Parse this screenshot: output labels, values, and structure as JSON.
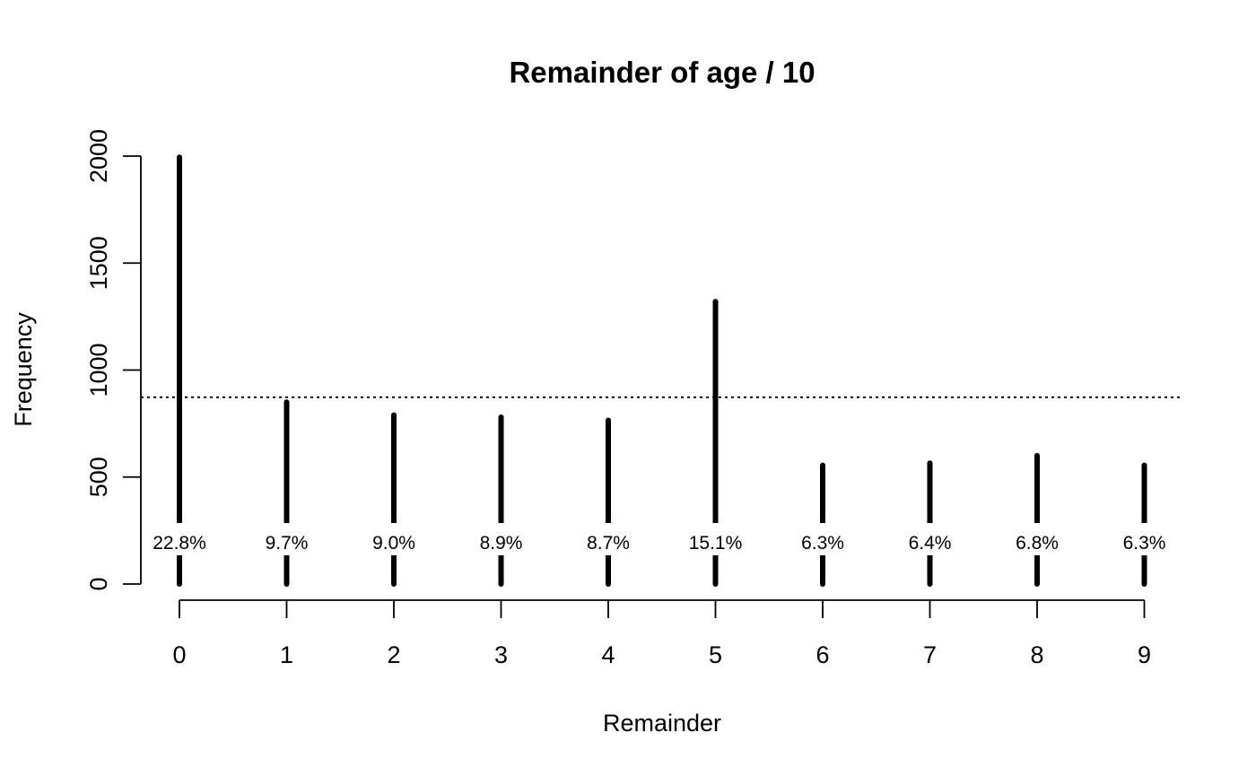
{
  "chart_data": {
    "type": "bar",
    "title": "Remainder of age / 10",
    "xlabel": "Remainder",
    "ylabel": "Frequency",
    "categories": [
      "0",
      "1",
      "2",
      "3",
      "4",
      "5",
      "6",
      "7",
      "8",
      "9"
    ],
    "values": [
      1995,
      850,
      790,
      780,
      765,
      1320,
      555,
      565,
      600,
      555
    ],
    "percent_labels": [
      "22.8%",
      "9.7%",
      "9.0%",
      "8.9%",
      "8.7%",
      "15.1%",
      "6.3%",
      "6.4%",
      "6.8%",
      "6.3%"
    ],
    "yticks": [
      "0",
      "500",
      "1000",
      "1500",
      "2000"
    ],
    "ylim": [
      0,
      2000
    ],
    "reference_line": {
      "value": 873,
      "style": "dotted"
    },
    "grid": false,
    "legend": "none",
    "bar_color": "#000000"
  }
}
